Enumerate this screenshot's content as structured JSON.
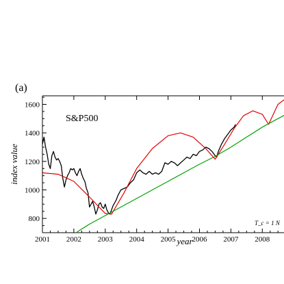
{
  "panel_label": "(a)",
  "chart_data": {
    "type": "line",
    "title": "S&P500",
    "xlabel": "year",
    "ylabel": "index value",
    "xlim": [
      2001,
      2008.8
    ],
    "ylim": [
      700,
      1660
    ],
    "x_ticks": [
      2001,
      2002,
      2003,
      2004,
      2005,
      2006,
      2007,
      2008
    ],
    "x_tick_labels": [
      "2001",
      "2002",
      "2003",
      "2004",
      "2005",
      "2006",
      "2007",
      "2008"
    ],
    "y_ticks": [
      800,
      1000,
      1200,
      1400,
      1600
    ],
    "y_tick_labels": [
      "800",
      "1000",
      "1200",
      "1400",
      "1600"
    ],
    "annotation": "T_c = 1 N",
    "colors": {
      "index": "#000000",
      "fit_log_periodic": "#e00000",
      "fit_trend": "#00a000"
    },
    "series": [
      {
        "color_key": "index",
        "x": [
          2001.0,
          2001.05,
          2001.1,
          2001.15,
          2001.2,
          2001.25,
          2001.3,
          2001.35,
          2001.4,
          2001.45,
          2001.5,
          2001.55,
          2001.6,
          2001.65,
          2001.7,
          2001.75,
          2001.8,
          2001.85,
          2001.9,
          2001.95,
          2002.0,
          2002.05,
          2002.1,
          2002.15,
          2002.2,
          2002.25,
          2002.3,
          2002.35,
          2002.4,
          2002.45,
          2002.5,
          2002.55,
          2002.6,
          2002.65,
          2002.7,
          2002.75,
          2002.8,
          2002.85,
          2002.9,
          2002.95,
          2003.0,
          2003.05,
          2003.1,
          2003.15,
          2003.2,
          2003.25,
          2003.3,
          2003.35,
          2003.4,
          2003.45,
          2003.5,
          2003.6,
          2003.7,
          2003.8,
          2003.9,
          2004.0,
          2004.1,
          2004.2,
          2004.3,
          2004.4,
          2004.5,
          2004.6,
          2004.7,
          2004.8,
          2004.9,
          2005.0,
          2005.1,
          2005.2,
          2005.3,
          2005.4,
          2005.5,
          2005.6,
          2005.7,
          2005.8,
          2005.9,
          2006.0,
          2006.1,
          2006.2,
          2006.3,
          2006.4,
          2006.5,
          2006.55,
          2006.6,
          2006.7,
          2006.8,
          2006.9,
          2007.0,
          2007.1,
          2007.15
        ],
        "y": [
          1320,
          1370,
          1300,
          1250,
          1180,
          1150,
          1240,
          1270,
          1230,
          1210,
          1220,
          1200,
          1170,
          1080,
          1020,
          1070,
          1100,
          1120,
          1150,
          1140,
          1150,
          1120,
          1100,
          1130,
          1150,
          1110,
          1080,
          1060,
          1010,
          980,
          880,
          900,
          920,
          880,
          830,
          860,
          900,
          910,
          880,
          870,
          900,
          860,
          840,
          830,
          860,
          890,
          910,
          930,
          960,
          980,
          1000,
          1010,
          1020,
          1050,
          1070,
          1120,
          1140,
          1120,
          1110,
          1130,
          1110,
          1120,
          1110,
          1130,
          1190,
          1180,
          1200,
          1190,
          1170,
          1190,
          1210,
          1230,
          1220,
          1250,
          1240,
          1270,
          1280,
          1300,
          1290,
          1270,
          1240,
          1230,
          1270,
          1320,
          1360,
          1390,
          1420,
          1440,
          1460
        ]
      },
      {
        "color_key": "fit_log_periodic",
        "x": [
          2001.0,
          2001.5,
          2002.0,
          2002.5,
          2002.8,
          2003.0,
          2003.2,
          2003.6,
          2004.0,
          2004.5,
          2005.0,
          2005.4,
          2005.8,
          2006.2,
          2006.5,
          2006.8,
          2007.1,
          2007.4,
          2007.7,
          2008.0,
          2008.2,
          2008.5,
          2008.8
        ],
        "y": [
          1120,
          1110,
          1060,
          950,
          880,
          835,
          830,
          980,
          1150,
          1290,
          1380,
          1400,
          1370,
          1290,
          1215,
          1320,
          1430,
          1520,
          1555,
          1530,
          1460,
          1600,
          1650
        ]
      },
      {
        "color_key": "fit_trend",
        "x": [
          2002.1,
          2002.5,
          2003.0,
          2003.5,
          2004.0,
          2004.5,
          2005.0,
          2005.5,
          2006.0,
          2006.5,
          2007.0,
          2007.5,
          2008.0,
          2008.5,
          2008.8
        ],
        "y": [
          705,
          760,
          820,
          880,
          940,
          1000,
          1060,
          1120,
          1180,
          1235,
          1300,
          1370,
          1440,
          1500,
          1535
        ]
      }
    ]
  }
}
